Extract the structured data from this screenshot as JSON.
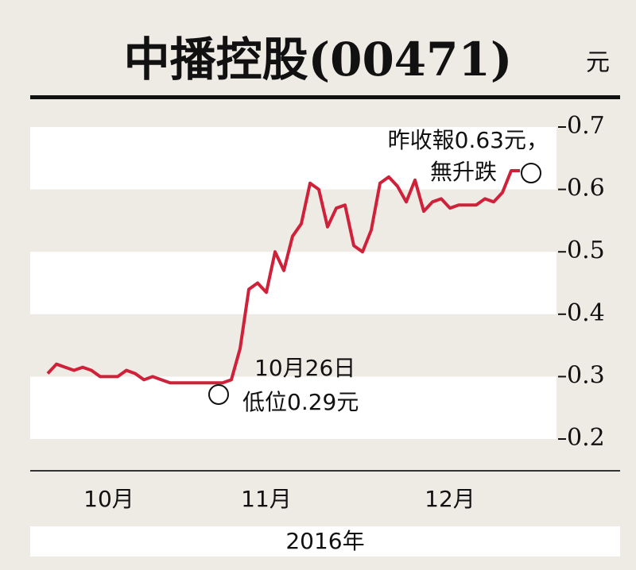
{
  "chart_data": {
    "type": "line",
    "title": "中播控股(00471)",
    "unit": "元",
    "xlabel": "2016年",
    "categories": [
      null,
      null,
      null,
      null,
      null,
      null,
      null,
      "10月",
      null,
      null,
      null,
      null,
      null,
      null,
      null,
      null,
      null,
      null,
      null,
      null,
      null,
      null,
      null,
      null,
      null,
      "11月",
      null,
      null,
      null,
      null,
      null,
      null,
      null,
      null,
      null,
      null,
      null,
      null,
      null,
      null,
      null,
      null,
      null,
      null,
      null,
      null,
      "12月",
      null,
      null,
      null,
      null,
      null,
      null,
      null,
      null
    ],
    "series": [
      {
        "color": "#d0213a",
        "values": [
          0.305,
          0.32,
          0.315,
          0.31,
          0.315,
          0.31,
          0.3,
          0.3,
          0.3,
          0.31,
          0.305,
          0.295,
          0.3,
          0.295,
          0.29,
          0.29,
          0.29,
          0.29,
          0.29,
          0.29,
          0.29,
          0.295,
          0.345,
          0.44,
          0.45,
          0.435,
          0.5,
          0.47,
          0.525,
          0.545,
          0.61,
          0.6,
          0.54,
          0.57,
          0.575,
          0.51,
          0.5,
          0.535,
          0.61,
          0.62,
          0.605,
          0.58,
          0.615,
          0.565,
          0.58,
          0.585,
          0.57,
          0.575,
          0.575,
          0.575,
          0.585,
          0.58,
          0.595,
          0.63,
          0.63
        ]
      }
    ],
    "ylim": [
      0.2,
      0.7
    ],
    "yticks": [
      0.2,
      0.3,
      0.4,
      0.5,
      0.6,
      0.7
    ],
    "annotations": [
      {
        "lines": [
          "10月26日",
          "低位0.29元"
        ]
      },
      {
        "lines": [
          "昨收報0.63元，",
          "無升跌"
        ]
      }
    ]
  }
}
